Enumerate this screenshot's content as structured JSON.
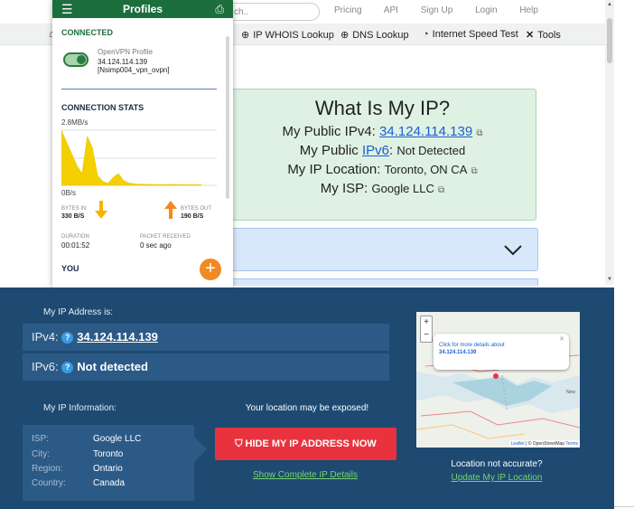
{
  "site": {
    "search_placeholder": "ch..",
    "top_links": [
      "Pricing",
      "API",
      "Sign Up",
      "Login",
      "Help"
    ],
    "nav": [
      {
        "icon": "home-icon",
        "glyph": "⌂",
        "label": ""
      },
      {
        "icon": "globe-icon",
        "glyph": "⊕",
        "label": "IP WHOIS Lookup"
      },
      {
        "icon": "dns-icon",
        "glyph": "⊕",
        "label": "DNS Lookup"
      },
      {
        "icon": "speed-icon",
        "glyph": "◔",
        "label": "Internet Speed Test"
      },
      {
        "icon": "tools-icon",
        "glyph": "✕",
        "label": "Tools"
      }
    ],
    "card": {
      "title": "What Is My IP?",
      "ipv4_label": "My Public IPv4:",
      "ipv4_value": "34.124.114.139",
      "ipv6_label_pre": "My Public ",
      "ipv6_link": "IPv6",
      "ipv6_label_post": ":",
      "ipv6_value": "Not Detected",
      "location_label": "My IP Location:",
      "location_value": "Toronto, ON CA",
      "isp_label": "My ISP:",
      "isp_value": "Google LLC"
    }
  },
  "vpn": {
    "title": "Profiles",
    "status": "CONNECTED",
    "profile_name": "OpenVPN Profile",
    "profile_ip": "34.124.114.139",
    "profile_id": "[Nsimp004_vpn_ovpn]",
    "stats_title": "CONNECTION STATS",
    "rate_max": "2.8MB/s",
    "rate_min": "0B/s",
    "bytes_in_label": "BYTES IN",
    "bytes_in_value": "330 B/S",
    "bytes_out_label": "BYTES OUT",
    "bytes_out_value": "190 B/S",
    "duration_label": "DURATION",
    "duration_value": "00:01:52",
    "packet_label": "PACKET RECEIVED",
    "packet_value": "0 sec ago",
    "you_label": "YOU",
    "accent": "#1c6e3d",
    "traffic": [
      2.8,
      2.2,
      1.6,
      1.0,
      0.6,
      2.5,
      1.9,
      0.5,
      0.2,
      0.1,
      0.4,
      0.6,
      0.25,
      0.12,
      0.08,
      0.06,
      0.05,
      0.05,
      0.04,
      0.04,
      0.04,
      0.05,
      0.04,
      0.04,
      0.03,
      0.03,
      0.03,
      0.03
    ]
  },
  "bottom": {
    "address_label": "My IP Address is:",
    "ipv4_prefix": "IPv4:",
    "ipv4_value": "34.124.114.139",
    "ipv6_prefix": "IPv6:",
    "ipv6_value": "Not detected",
    "info_label": "My IP Information:",
    "info": [
      {
        "k": "ISP:",
        "v": "Google LLC"
      },
      {
        "k": "City:",
        "v": "Toronto"
      },
      {
        "k": "Region:",
        "v": "Ontario"
      },
      {
        "k": "Country:",
        "v": "Canada"
      }
    ],
    "exposed_text": "Your location may be exposed!",
    "hide_button": "HIDE MY IP ADDRESS NOW",
    "show_details": "Show Complete IP Details",
    "map_popup_line1": "Click for more details about",
    "map_popup_line2": "34.124.114.139",
    "map_attrib_leaflet": "Leaflet",
    "map_attrib_osm": "| © OpenStreetMap",
    "map_attrib_terms": "Terms",
    "map_label": "New",
    "not_accurate": "Location not accurate?",
    "update_location": "Update My IP Location"
  }
}
